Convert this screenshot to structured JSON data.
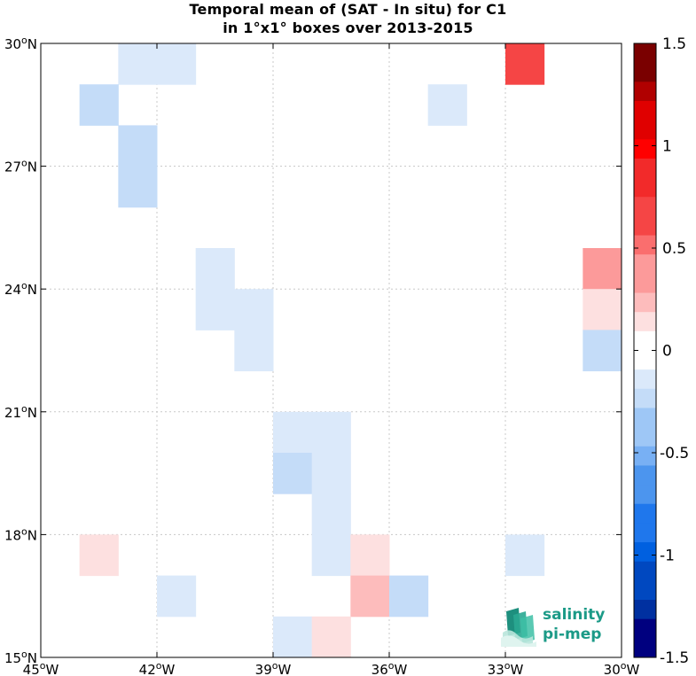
{
  "title": {
    "line1": "Temporal mean of (SAT - In situ) for C1",
    "line2": "in 1°x1° boxes over 2013-2015"
  },
  "logo": {
    "line1": "salinity",
    "line2": "pi-mep"
  },
  "colors": {
    "positive_scale": [
      "#ffffff",
      "#fde0e0",
      "#fdbcbc",
      "#fc9a9a",
      "#fa6e6e",
      "#f54545",
      "#f22a2a",
      "#ff0000",
      "#e00000",
      "#b00000",
      "#7a0000"
    ],
    "negative_scale": [
      "#ffffff",
      "#dbe9fa",
      "#c4dcf8",
      "#9ec7f6",
      "#78b0f4",
      "#4c95ee",
      "#1f77ec",
      "#0060e0",
      "#0048c0",
      "#0030a0",
      "#00007f"
    ]
  },
  "chart_data": {
    "type": "heatmap",
    "title": "Temporal mean of (SAT - In situ) for C1 in 1°x1° boxes over 2013-2015",
    "xlabel": "",
    "ylabel": "",
    "xlim": [
      -45,
      -30
    ],
    "ylim": [
      15,
      30
    ],
    "grid": true,
    "x_ticks": [
      -45,
      -42,
      -39,
      -36,
      -33,
      -30
    ],
    "x_tick_labels": [
      "45°W",
      "42°W",
      "39°W",
      "36°W",
      "33°W",
      "30°W"
    ],
    "y_ticks": [
      15,
      18,
      21,
      24,
      27,
      30
    ],
    "y_tick_labels": [
      "15°N",
      "18°N",
      "21°N",
      "24°N",
      "27°N",
      "30°N"
    ],
    "colorbar": {
      "min": -1.5,
      "max": 1.5,
      "tick_values": [
        1.5,
        1,
        0.5,
        0,
        -0.5,
        -1,
        -1.5
      ],
      "tick_labels": [
        "1.5",
        "1",
        "0.5",
        "0",
        "-0.5",
        "-1",
        "-1.5"
      ],
      "placement": "right"
    },
    "cell_size_deg": 1,
    "cells": [
      {
        "lon": -42,
        "lat": 29,
        "value": -0.1
      },
      {
        "lon": -43,
        "lat": 29,
        "value": -0.1
      },
      {
        "lon": -44,
        "lat": 28,
        "value": -0.2
      },
      {
        "lon": -43,
        "lat": 27,
        "value": -0.2
      },
      {
        "lon": -43,
        "lat": 26,
        "value": -0.2
      },
      {
        "lon": -35,
        "lat": 28,
        "value": -0.1
      },
      {
        "lon": -33,
        "lat": 29,
        "value": 0.75
      },
      {
        "lon": -41,
        "lat": 24,
        "value": -0.1
      },
      {
        "lon": -41,
        "lat": 23,
        "value": -0.1
      },
      {
        "lon": -40,
        "lat": 23,
        "value": -0.1
      },
      {
        "lon": -40,
        "lat": 22,
        "value": -0.1
      },
      {
        "lon": -31,
        "lat": 24,
        "value": 0.4
      },
      {
        "lon": -31,
        "lat": 23,
        "value": 0.15
      },
      {
        "lon": -31,
        "lat": 22,
        "value": -0.3
      },
      {
        "lon": -39,
        "lat": 20,
        "value": -0.1
      },
      {
        "lon": -38,
        "lat": 20,
        "value": -0.1
      },
      {
        "lon": -39,
        "lat": 19,
        "value": -0.2
      },
      {
        "lon": -38,
        "lat": 19,
        "value": -0.1
      },
      {
        "lon": -38,
        "lat": 18,
        "value": -0.1
      },
      {
        "lon": -38,
        "lat": 17,
        "value": -0.1
      },
      {
        "lon": -37,
        "lat": 17,
        "value": 0.15
      },
      {
        "lon": -44,
        "lat": 17,
        "value": 0.15
      },
      {
        "lon": -33,
        "lat": 17,
        "value": -0.1
      },
      {
        "lon": -42,
        "lat": 16,
        "value": -0.1
      },
      {
        "lon": -37,
        "lat": 16,
        "value": 0.3
      },
      {
        "lon": -36,
        "lat": 16,
        "value": -0.3
      },
      {
        "lon": -39,
        "lat": 15,
        "value": -0.1
      },
      {
        "lon": -38,
        "lat": 15,
        "value": 0.15
      }
    ]
  }
}
